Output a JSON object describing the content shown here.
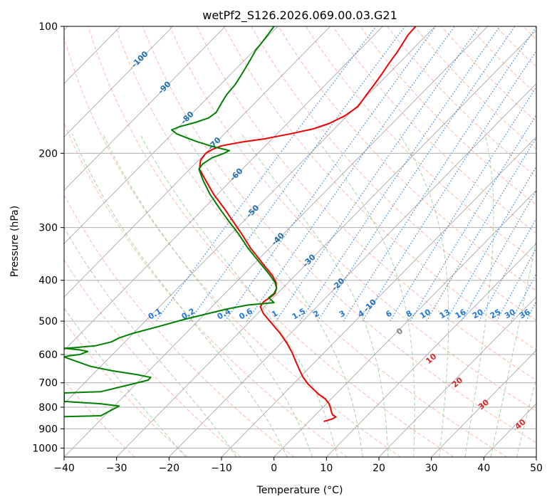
{
  "chart_data": {
    "type": "line",
    "title": "wetPf2_S126.2026.069.00.03.G21",
    "xlabel": "Temperature (°C)",
    "ylabel": "Pressure (hPa)",
    "xlim": [
      -40,
      50
    ],
    "ylim": [
      1050,
      100
    ],
    "y_scale": "log",
    "grid": true,
    "x_ticks": [
      -40,
      -30,
      -20,
      -10,
      0,
      10,
      20,
      30,
      40,
      50
    ],
    "x_tick_labels": [
      "−40",
      "−30",
      "−20",
      "−10",
      "0",
      "10",
      "20",
      "30",
      "40",
      "50"
    ],
    "y_ticks": [
      100,
      200,
      300,
      400,
      500,
      600,
      700,
      800,
      900,
      1000
    ],
    "y_tick_labels": [
      "100",
      "200",
      "300",
      "400",
      "500",
      "600",
      "700",
      "800",
      "900",
      "1000"
    ],
    "colors": {
      "temperature": "#ee0000",
      "dewpoint": "#008000",
      "isotherm": "#808080",
      "dry_adiabat": "#fa8060",
      "moist_adiabat": "#80c080",
      "mixing_ratio": "#1e78dc",
      "isotherm_label": "#1f6fb0"
    },
    "series": [
      {
        "name": "",
        "color": "#ee0000",
        "points": [
          [
            9.5,
            865
          ],
          [
            10.2,
            860
          ],
          [
            11.2,
            852
          ],
          [
            11.8,
            843
          ],
          [
            11.2,
            835
          ],
          [
            11.0,
            825
          ],
          [
            10.8,
            805
          ],
          [
            10.5,
            785
          ],
          [
            9.8,
            765
          ],
          [
            8.5,
            745
          ],
          [
            7.5,
            725
          ],
          [
            6.5,
            705
          ],
          [
            5.5,
            678
          ],
          [
            4.8,
            650
          ],
          [
            4.2,
            625
          ],
          [
            3.5,
            595
          ],
          [
            2.5,
            565
          ],
          [
            1.2,
            535
          ],
          [
            -0.5,
            505
          ],
          [
            -2.0,
            480
          ],
          [
            -2.6,
            462
          ],
          [
            -2.0,
            450
          ],
          [
            -0.8,
            440
          ],
          [
            0.2,
            430
          ],
          [
            0.5,
            418
          ],
          [
            0.4,
            405
          ],
          [
            -0.3,
            390
          ],
          [
            -1.8,
            370
          ],
          [
            -3.3,
            350
          ],
          [
            -4.5,
            335
          ],
          [
            -6.2,
            310
          ],
          [
            -7.8,
            290
          ],
          [
            -9.5,
            270
          ],
          [
            -11.5,
            250
          ],
          [
            -13.0,
            232
          ],
          [
            -14.2,
            218
          ],
          [
            -14.0,
            208
          ],
          [
            -13.0,
            200
          ],
          [
            -11.8,
            196
          ],
          [
            -10.0,
            192
          ],
          [
            -6.0,
            188
          ],
          [
            -2.0,
            185
          ],
          [
            3.0,
            180
          ],
          [
            7.5,
            175
          ],
          [
            10.5,
            170
          ],
          [
            13.5,
            163
          ],
          [
            16.0,
            155
          ],
          [
            17.5,
            146
          ],
          [
            19.0,
            138
          ],
          [
            20.5,
            130
          ],
          [
            22.0,
            122
          ],
          [
            23.5,
            115
          ],
          [
            24.5,
            110
          ],
          [
            25.5,
            105
          ],
          [
            27.0,
            100
          ]
        ]
      },
      {
        "name": "",
        "color": "#008000",
        "points": [
          [
            -40,
            842
          ],
          [
            -33,
            838
          ],
          [
            -29.5,
            795
          ],
          [
            -33,
            785
          ],
          [
            -40,
            775
          ],
          [
            -40,
            740
          ],
          [
            -33,
            735
          ],
          [
            -27,
            705
          ],
          [
            -24,
            690
          ],
          [
            -23.5,
            680
          ],
          [
            -26,
            670
          ],
          [
            -31,
            655
          ],
          [
            -35,
            640
          ],
          [
            -40,
            608
          ],
          [
            -39,
            604
          ],
          [
            -37,
            600
          ],
          [
            -35.5,
            590
          ],
          [
            -37,
            585
          ],
          [
            -40,
            580
          ],
          [
            -38,
            578
          ],
          [
            -34,
            572
          ],
          [
            -31,
            560
          ],
          [
            -29.5,
            548
          ],
          [
            -27,
            535
          ],
          [
            -22,
            515
          ],
          [
            -17,
            495
          ],
          [
            -12,
            478
          ],
          [
            -9,
            468
          ],
          [
            -5,
            458
          ],
          [
            0,
            452
          ],
          [
            -1,
            440
          ],
          [
            0,
            430
          ],
          [
            0.5,
            418
          ],
          [
            0.2,
            405
          ],
          [
            -0.7,
            390
          ],
          [
            -2.2,
            370
          ],
          [
            -3.8,
            350
          ],
          [
            -5,
            335
          ],
          [
            -6.8,
            310
          ],
          [
            -8.6,
            290
          ],
          [
            -10.4,
            270
          ],
          [
            -12.2,
            250
          ],
          [
            -13.5,
            232
          ],
          [
            -14.3,
            218
          ],
          [
            -13.6,
            212
          ],
          [
            -11.8,
            205
          ],
          [
            -9.5,
            200
          ],
          [
            -8.5,
            197
          ],
          [
            -11.5,
            193
          ],
          [
            -14.5,
            188
          ],
          [
            -16.5,
            184
          ],
          [
            -18.5,
            180
          ],
          [
            -19.5,
            176
          ],
          [
            -18,
            173
          ],
          [
            -15,
            169
          ],
          [
            -12.5,
            165
          ],
          [
            -11,
            160
          ],
          [
            -10,
            152
          ],
          [
            -9,
            145
          ],
          [
            -7.5,
            138
          ],
          [
            -6.5,
            132
          ],
          [
            -5.5,
            126
          ],
          [
            -4.5,
            120
          ],
          [
            -3.5,
            114
          ],
          [
            -2.5,
            110
          ],
          [
            -1,
            104
          ],
          [
            0,
            100
          ]
        ]
      }
    ],
    "isotherm_labels": [
      {
        "text": "-100",
        "t": -100,
        "p": 120
      },
      {
        "text": "-90",
        "t": -90,
        "p": 140
      },
      {
        "text": "-80",
        "t": -80,
        "p": 165
      },
      {
        "text": "-70",
        "t": -70,
        "p": 190
      },
      {
        "text": "-60",
        "t": -60,
        "p": 225
      },
      {
        "text": "-50",
        "t": -50,
        "p": 275
      },
      {
        "text": "-40",
        "t": -40,
        "p": 320
      },
      {
        "text": "-30",
        "t": -30,
        "p": 360
      },
      {
        "text": "-20",
        "t": -20,
        "p": 410
      },
      {
        "text": "-10",
        "t": -10,
        "p": 460
      }
    ],
    "mixing_ratio_labels": [
      "0.1",
      "0.2",
      "0.4",
      "0.6",
      "1",
      "1.5",
      "2",
      "3",
      "4",
      "6",
      "8",
      "10",
      "13",
      "16",
      "20",
      "25",
      "30",
      "36"
    ],
    "moist_adiabat_labels": [
      {
        "text": "0",
        "color": "#808080"
      },
      {
        "text": "10",
        "color": "#d62728"
      },
      {
        "text": "20",
        "color": "#d62728"
      },
      {
        "text": "30",
        "color": "#d62728"
      },
      {
        "text": "40",
        "color": "#d62728"
      }
    ]
  }
}
